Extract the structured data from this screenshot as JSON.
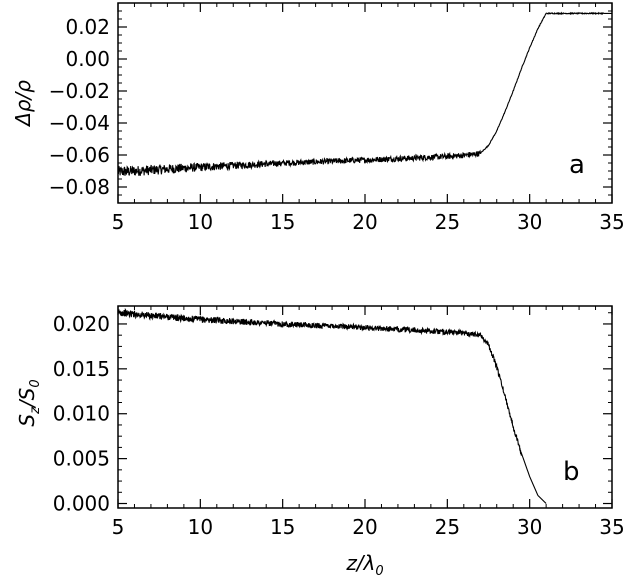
{
  "chart_data": [
    {
      "type": "line",
      "panel_label": "a",
      "ylabel": "Δρ/ρ",
      "xlabel": "",
      "xlim": [
        5,
        35
      ],
      "ylim": [
        -0.09,
        0.035
      ],
      "x_ticks": [
        5,
        10,
        15,
        20,
        25,
        30,
        35
      ],
      "y_ticks": [
        -0.08,
        -0.06,
        -0.04,
        -0.02,
        0.0,
        0.02
      ],
      "x_tick_labels": [
        "5",
        "10",
        "15",
        "20",
        "25",
        "30",
        "35"
      ],
      "y_tick_labels": [
        "−0.08",
        "−0.06",
        "−0.04",
        "−0.02",
        "0.00",
        "0.02"
      ],
      "grid": false,
      "series": [
        {
          "x": [
            5,
            6,
            7,
            8,
            9,
            10,
            11,
            12,
            13,
            14,
            15,
            16,
            17,
            18,
            19,
            20,
            21,
            22,
            23,
            24,
            25,
            26,
            27,
            27.5,
            28,
            28.5,
            29,
            29.5,
            30,
            30.5,
            31,
            32,
            33,
            34,
            35
          ],
          "y": [
            -0.0705,
            -0.07,
            -0.0694,
            -0.0688,
            -0.0682,
            -0.0676,
            -0.0671,
            -0.0666,
            -0.0661,
            -0.0656,
            -0.0651,
            -0.0647,
            -0.0643,
            -0.0639,
            -0.0635,
            -0.0631,
            -0.0627,
            -0.0623,
            -0.0619,
            -0.0614,
            -0.0609,
            -0.0602,
            -0.059,
            -0.054,
            -0.045,
            -0.033,
            -0.02,
            -0.006,
            0.007,
            0.019,
            0.0285,
            0.0285,
            0.0285,
            0.0285,
            0.0285
          ],
          "noise_until_x": 27,
          "noise_amplitude": [
            0.0035,
            0.0018
          ]
        }
      ]
    },
    {
      "type": "line",
      "panel_label": "b",
      "ylabel": "Sz/S0",
      "ylabel_main": "S",
      "ylabel_sub": "z",
      "ylabel_den_main": "S",
      "ylabel_den_sub": "0",
      "xlabel": "z/λ0",
      "xlabel_main": "z/λ",
      "xlabel_sub": "0",
      "xlim": [
        5,
        35
      ],
      "ylim": [
        -0.0005,
        0.022
      ],
      "x_ticks": [
        5,
        10,
        15,
        20,
        25,
        30,
        35
      ],
      "y_ticks": [
        0.0,
        0.005,
        0.01,
        0.015,
        0.02
      ],
      "x_tick_labels": [
        "5",
        "10",
        "15",
        "20",
        "25",
        "30",
        "35"
      ],
      "y_tick_labels": [
        "0.000",
        "0.005",
        "0.010",
        "0.015",
        "0.020"
      ],
      "grid": false,
      "series": [
        {
          "x": [
            5,
            6,
            7,
            8,
            9,
            10,
            11,
            12,
            13,
            14,
            15,
            16,
            17,
            18,
            19,
            20,
            21,
            22,
            23,
            24,
            25,
            26,
            27,
            27.5,
            28,
            28.5,
            29,
            29.5,
            30,
            30.5,
            31
          ],
          "y": [
            0.0213,
            0.0211,
            0.0209,
            0.0208,
            0.0206,
            0.0205,
            0.0204,
            0.0203,
            0.0202,
            0.0201,
            0.02,
            0.0199,
            0.0198,
            0.0198,
            0.0197,
            0.0196,
            0.0195,
            0.0194,
            0.0193,
            0.0192,
            0.0191,
            0.019,
            0.0188,
            0.0177,
            0.0152,
            0.012,
            0.0086,
            0.0056,
            0.003,
            0.0009,
            0.0
          ],
          "noise_until_x": 29.5,
          "noise_amplitude": [
            0.0004,
            0.0003
          ]
        }
      ]
    }
  ]
}
